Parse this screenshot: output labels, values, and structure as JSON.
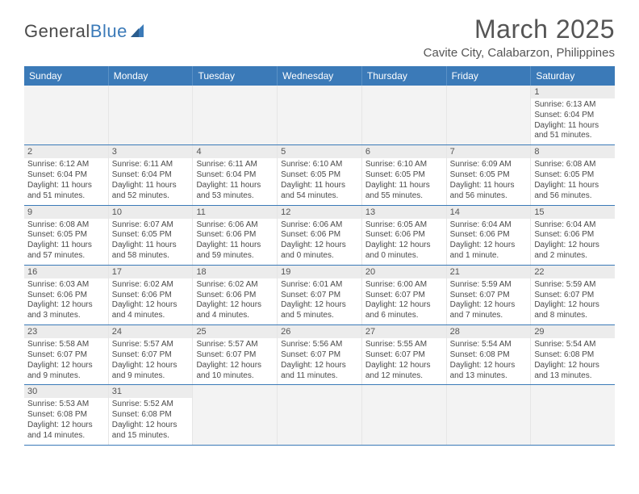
{
  "brand": {
    "name_part1": "General",
    "name_part2": "Blue",
    "accent_color": "#3b7ab8"
  },
  "title": "March 2025",
  "location": "Cavite City, Calabarzon, Philippines",
  "header_bg": "#3b7ab8",
  "day_headers": [
    "Sunday",
    "Monday",
    "Tuesday",
    "Wednesday",
    "Thursday",
    "Friday",
    "Saturday"
  ],
  "weeks": [
    [
      {
        "n": "",
        "empty": true
      },
      {
        "n": "",
        "empty": true
      },
      {
        "n": "",
        "empty": true
      },
      {
        "n": "",
        "empty": true
      },
      {
        "n": "",
        "empty": true
      },
      {
        "n": "",
        "empty": true
      },
      {
        "n": "1",
        "sunrise": "Sunrise: 6:13 AM",
        "sunset": "Sunset: 6:04 PM",
        "daylight": "Daylight: 11 hours and 51 minutes."
      }
    ],
    [
      {
        "n": "2",
        "sunrise": "Sunrise: 6:12 AM",
        "sunset": "Sunset: 6:04 PM",
        "daylight": "Daylight: 11 hours and 51 minutes."
      },
      {
        "n": "3",
        "sunrise": "Sunrise: 6:11 AM",
        "sunset": "Sunset: 6:04 PM",
        "daylight": "Daylight: 11 hours and 52 minutes."
      },
      {
        "n": "4",
        "sunrise": "Sunrise: 6:11 AM",
        "sunset": "Sunset: 6:04 PM",
        "daylight": "Daylight: 11 hours and 53 minutes."
      },
      {
        "n": "5",
        "sunrise": "Sunrise: 6:10 AM",
        "sunset": "Sunset: 6:05 PM",
        "daylight": "Daylight: 11 hours and 54 minutes."
      },
      {
        "n": "6",
        "sunrise": "Sunrise: 6:10 AM",
        "sunset": "Sunset: 6:05 PM",
        "daylight": "Daylight: 11 hours and 55 minutes."
      },
      {
        "n": "7",
        "sunrise": "Sunrise: 6:09 AM",
        "sunset": "Sunset: 6:05 PM",
        "daylight": "Daylight: 11 hours and 56 minutes."
      },
      {
        "n": "8",
        "sunrise": "Sunrise: 6:08 AM",
        "sunset": "Sunset: 6:05 PM",
        "daylight": "Daylight: 11 hours and 56 minutes."
      }
    ],
    [
      {
        "n": "9",
        "sunrise": "Sunrise: 6:08 AM",
        "sunset": "Sunset: 6:05 PM",
        "daylight": "Daylight: 11 hours and 57 minutes."
      },
      {
        "n": "10",
        "sunrise": "Sunrise: 6:07 AM",
        "sunset": "Sunset: 6:05 PM",
        "daylight": "Daylight: 11 hours and 58 minutes."
      },
      {
        "n": "11",
        "sunrise": "Sunrise: 6:06 AM",
        "sunset": "Sunset: 6:06 PM",
        "daylight": "Daylight: 11 hours and 59 minutes."
      },
      {
        "n": "12",
        "sunrise": "Sunrise: 6:06 AM",
        "sunset": "Sunset: 6:06 PM",
        "daylight": "Daylight: 12 hours and 0 minutes."
      },
      {
        "n": "13",
        "sunrise": "Sunrise: 6:05 AM",
        "sunset": "Sunset: 6:06 PM",
        "daylight": "Daylight: 12 hours and 0 minutes."
      },
      {
        "n": "14",
        "sunrise": "Sunrise: 6:04 AM",
        "sunset": "Sunset: 6:06 PM",
        "daylight": "Daylight: 12 hours and 1 minute."
      },
      {
        "n": "15",
        "sunrise": "Sunrise: 6:04 AM",
        "sunset": "Sunset: 6:06 PM",
        "daylight": "Daylight: 12 hours and 2 minutes."
      }
    ],
    [
      {
        "n": "16",
        "sunrise": "Sunrise: 6:03 AM",
        "sunset": "Sunset: 6:06 PM",
        "daylight": "Daylight: 12 hours and 3 minutes."
      },
      {
        "n": "17",
        "sunrise": "Sunrise: 6:02 AM",
        "sunset": "Sunset: 6:06 PM",
        "daylight": "Daylight: 12 hours and 4 minutes."
      },
      {
        "n": "18",
        "sunrise": "Sunrise: 6:02 AM",
        "sunset": "Sunset: 6:06 PM",
        "daylight": "Daylight: 12 hours and 4 minutes."
      },
      {
        "n": "19",
        "sunrise": "Sunrise: 6:01 AM",
        "sunset": "Sunset: 6:07 PM",
        "daylight": "Daylight: 12 hours and 5 minutes."
      },
      {
        "n": "20",
        "sunrise": "Sunrise: 6:00 AM",
        "sunset": "Sunset: 6:07 PM",
        "daylight": "Daylight: 12 hours and 6 minutes."
      },
      {
        "n": "21",
        "sunrise": "Sunrise: 5:59 AM",
        "sunset": "Sunset: 6:07 PM",
        "daylight": "Daylight: 12 hours and 7 minutes."
      },
      {
        "n": "22",
        "sunrise": "Sunrise: 5:59 AM",
        "sunset": "Sunset: 6:07 PM",
        "daylight": "Daylight: 12 hours and 8 minutes."
      }
    ],
    [
      {
        "n": "23",
        "sunrise": "Sunrise: 5:58 AM",
        "sunset": "Sunset: 6:07 PM",
        "daylight": "Daylight: 12 hours and 9 minutes."
      },
      {
        "n": "24",
        "sunrise": "Sunrise: 5:57 AM",
        "sunset": "Sunset: 6:07 PM",
        "daylight": "Daylight: 12 hours and 9 minutes."
      },
      {
        "n": "25",
        "sunrise": "Sunrise: 5:57 AM",
        "sunset": "Sunset: 6:07 PM",
        "daylight": "Daylight: 12 hours and 10 minutes."
      },
      {
        "n": "26",
        "sunrise": "Sunrise: 5:56 AM",
        "sunset": "Sunset: 6:07 PM",
        "daylight": "Daylight: 12 hours and 11 minutes."
      },
      {
        "n": "27",
        "sunrise": "Sunrise: 5:55 AM",
        "sunset": "Sunset: 6:07 PM",
        "daylight": "Daylight: 12 hours and 12 minutes."
      },
      {
        "n": "28",
        "sunrise": "Sunrise: 5:54 AM",
        "sunset": "Sunset: 6:08 PM",
        "daylight": "Daylight: 12 hours and 13 minutes."
      },
      {
        "n": "29",
        "sunrise": "Sunrise: 5:54 AM",
        "sunset": "Sunset: 6:08 PM",
        "daylight": "Daylight: 12 hours and 13 minutes."
      }
    ],
    [
      {
        "n": "30",
        "sunrise": "Sunrise: 5:53 AM",
        "sunset": "Sunset: 6:08 PM",
        "daylight": "Daylight: 12 hours and 14 minutes."
      },
      {
        "n": "31",
        "sunrise": "Sunrise: 5:52 AM",
        "sunset": "Sunset: 6:08 PM",
        "daylight": "Daylight: 12 hours and 15 minutes."
      },
      {
        "n": "",
        "empty": true
      },
      {
        "n": "",
        "empty": true
      },
      {
        "n": "",
        "empty": true
      },
      {
        "n": "",
        "empty": true
      },
      {
        "n": "",
        "empty": true
      }
    ]
  ]
}
